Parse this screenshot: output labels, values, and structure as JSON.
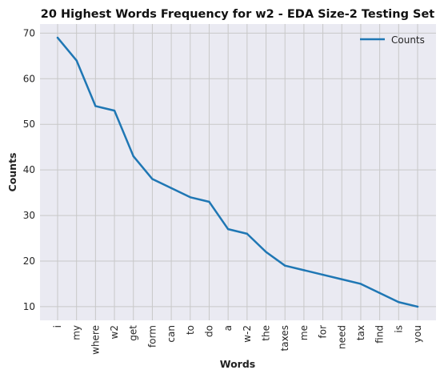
{
  "chart_data": {
    "type": "line",
    "title": "20 Highest Words Frequency for w2 - EDA Size-2 Testing Set",
    "xlabel": "Words",
    "ylabel": "Counts",
    "categories": [
      "i",
      "my",
      "where",
      "w2",
      "get",
      "form",
      "can",
      "to",
      "do",
      "a",
      "w-2",
      "the",
      "taxes",
      "me",
      "for",
      "need",
      "tax",
      "find",
      "is",
      "you"
    ],
    "series": [
      {
        "name": "Counts",
        "color": "#1f77b4",
        "values": [
          69,
          64,
          54,
          53,
          43,
          38,
          36,
          34,
          33,
          27,
          26,
          22,
          19,
          18,
          17,
          16,
          15,
          13,
          11,
          10
        ]
      }
    ],
    "ylim": [
      7,
      72
    ],
    "yticks": [
      10,
      20,
      30,
      40,
      50,
      60,
      70
    ],
    "grid": true,
    "legend_position": "top-right",
    "colors": {
      "plot_background": "#eaeaf2",
      "grid": "#c8c8c8"
    }
  }
}
